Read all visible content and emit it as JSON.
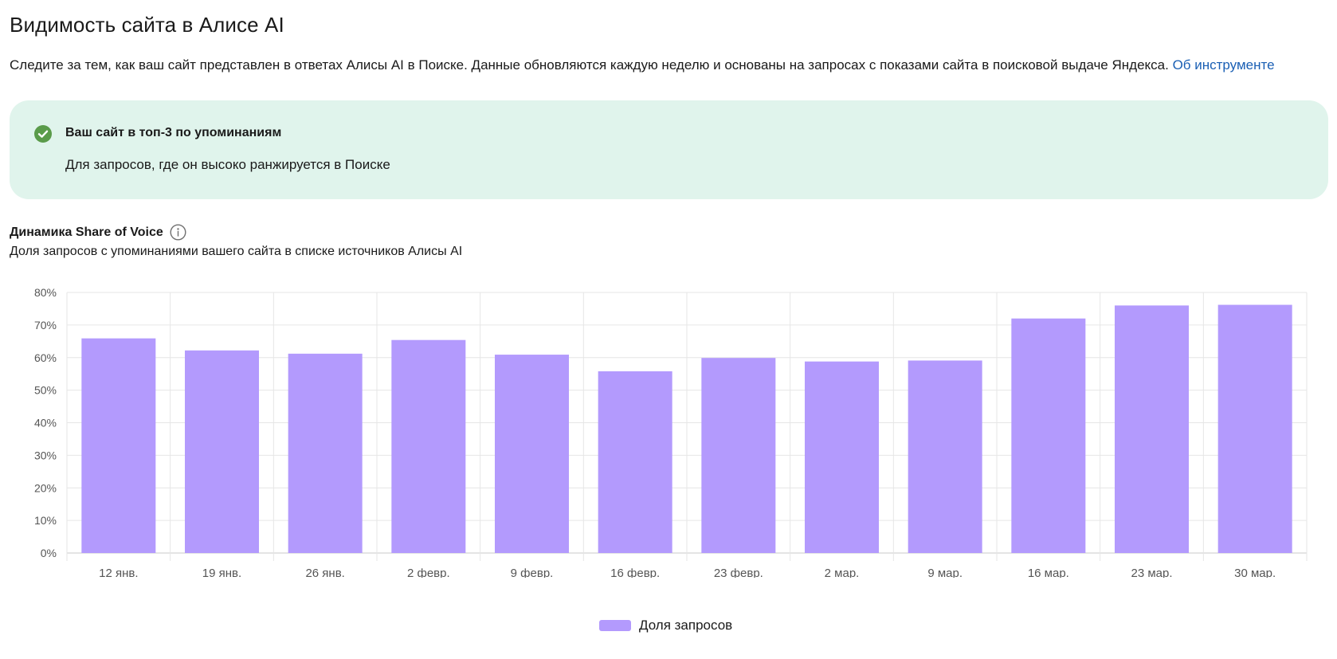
{
  "header": {
    "title": "Видимость сайта в Алисе AI",
    "description": "Следите за тем, как ваш сайт представлен в ответах Алисы AI в Поиске. Данные обновляются каждую неделю и основаны на запросах с показами сайта в поисковой выдаче Яндекса.",
    "link_label": "Об инструменте"
  },
  "alert": {
    "icon": "check-circle-icon",
    "title": "Ваш сайт в топ-3 по упоминаниям",
    "text": "Для запросов, где он высоко ранжируется в Поиске"
  },
  "chart_section": {
    "title": "Динамика Share of Voice",
    "info_icon": "info-icon",
    "subtitle": "Доля запросов с упоминаниями вашего сайта в списке источников Алисы AI"
  },
  "colors": {
    "bar": "#b39afd",
    "alert_bg": "#e0f4ec",
    "check": "#5a9b4a",
    "link": "#1a5fb4"
  },
  "chart_data": {
    "type": "bar",
    "categories": [
      "12 янв.",
      "19 янв.",
      "26 янв.",
      "2 февр.",
      "9 февр.",
      "16 февр.",
      "23 февр.",
      "2 мар.",
      "9 мар.",
      "16 мар.",
      "23 мар.",
      "30 мар."
    ],
    "series": [
      {
        "name": "Доля запросов",
        "values": [
          65.9,
          62.2,
          61.2,
          65.4,
          60.9,
          55.8,
          59.9,
          58.8,
          59.1,
          72.0,
          76.0,
          76.2
        ]
      }
    ],
    "ylim": [
      0,
      80
    ],
    "yticks": [
      "0%",
      "10%",
      "20%",
      "30%",
      "40%",
      "50%",
      "60%",
      "70%",
      "80%"
    ],
    "grid": true,
    "legend": "bottom-center"
  }
}
